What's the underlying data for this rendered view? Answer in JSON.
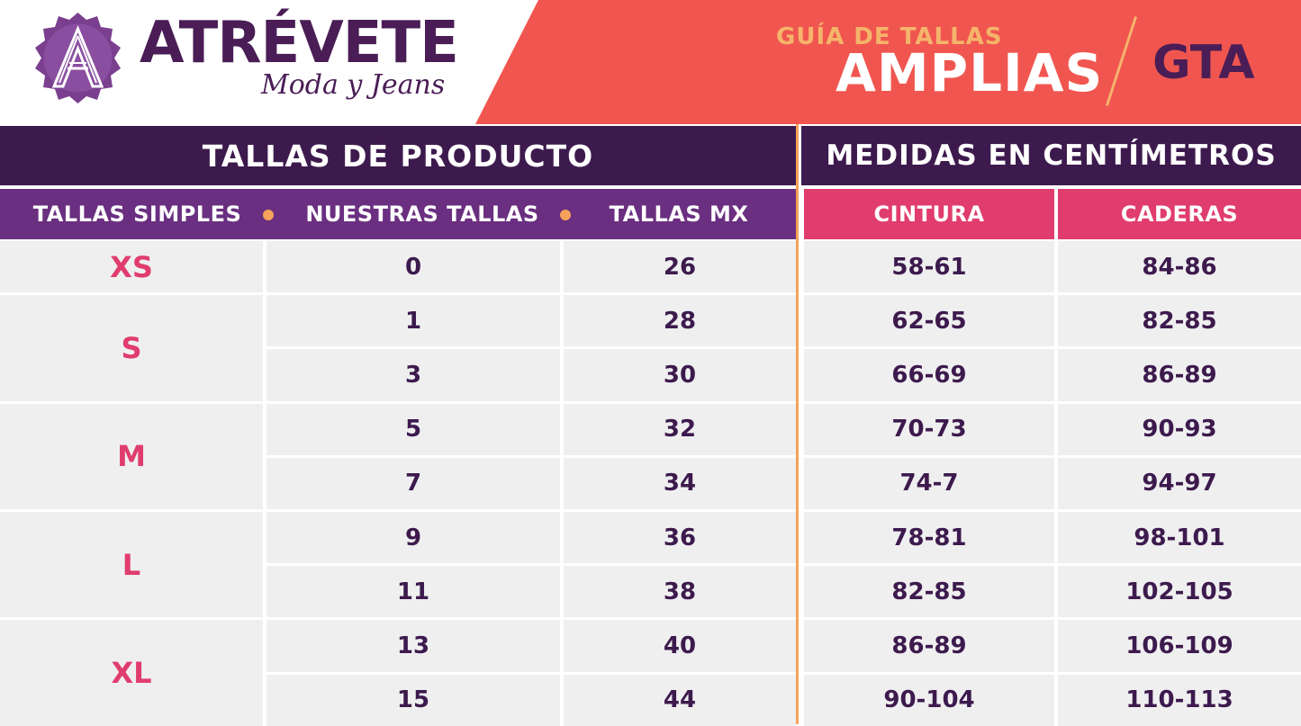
{
  "brand": {
    "name": "ATRÉVETE",
    "tagline": "Moda y Jeans",
    "logo_letter": "A"
  },
  "banner": {
    "subtitle": "GUÍA DE TALLAS",
    "title": "AMPLIAS",
    "code": "GTA"
  },
  "table": {
    "left_header": "TALLAS DE PRODUCTO",
    "right_header": "MEDIDAS  EN CENTÍMETROS",
    "columns": [
      "TALLAS SIMPLES",
      "NUESTRAS TALLAS",
      "TALLAS MX",
      "CINTURA",
      "CADERAS"
    ],
    "groups": [
      {
        "size": "XS",
        "rows": [
          {
            "ours": "0",
            "mx": "26",
            "waist": "58-61",
            "hips": "84-86"
          }
        ]
      },
      {
        "size": "S",
        "rows": [
          {
            "ours": "1",
            "mx": "28",
            "waist": "62-65",
            "hips": "82-85"
          },
          {
            "ours": "3",
            "mx": "30",
            "waist": "66-69",
            "hips": "86-89"
          }
        ]
      },
      {
        "size": "M",
        "rows": [
          {
            "ours": "5",
            "mx": "32",
            "waist": "70-73",
            "hips": "90-93"
          },
          {
            "ours": "7",
            "mx": "34",
            "waist": "74-7",
            "hips": "94-97"
          }
        ]
      },
      {
        "size": "L",
        "rows": [
          {
            "ours": "9",
            "mx": "36",
            "waist": "78-81",
            "hips": "98-101"
          },
          {
            "ours": "11",
            "mx": "38",
            "waist": "82-85",
            "hips": "102-105"
          }
        ]
      },
      {
        "size": "XL",
        "rows": [
          {
            "ours": "13",
            "mx": "40",
            "waist": "86-89",
            "hips": "106-109"
          },
          {
            "ours": "15",
            "mx": "44",
            "waist": "90-104",
            "hips": "110-113"
          }
        ]
      }
    ]
  },
  "colors": {
    "purple_dark": "#3d1a4d",
    "purple": "#6a2f80",
    "pink": "#e03d6e",
    "coral": "#f0564f",
    "orange": "#f5a35a",
    "cell_bg": "#efeff0"
  }
}
